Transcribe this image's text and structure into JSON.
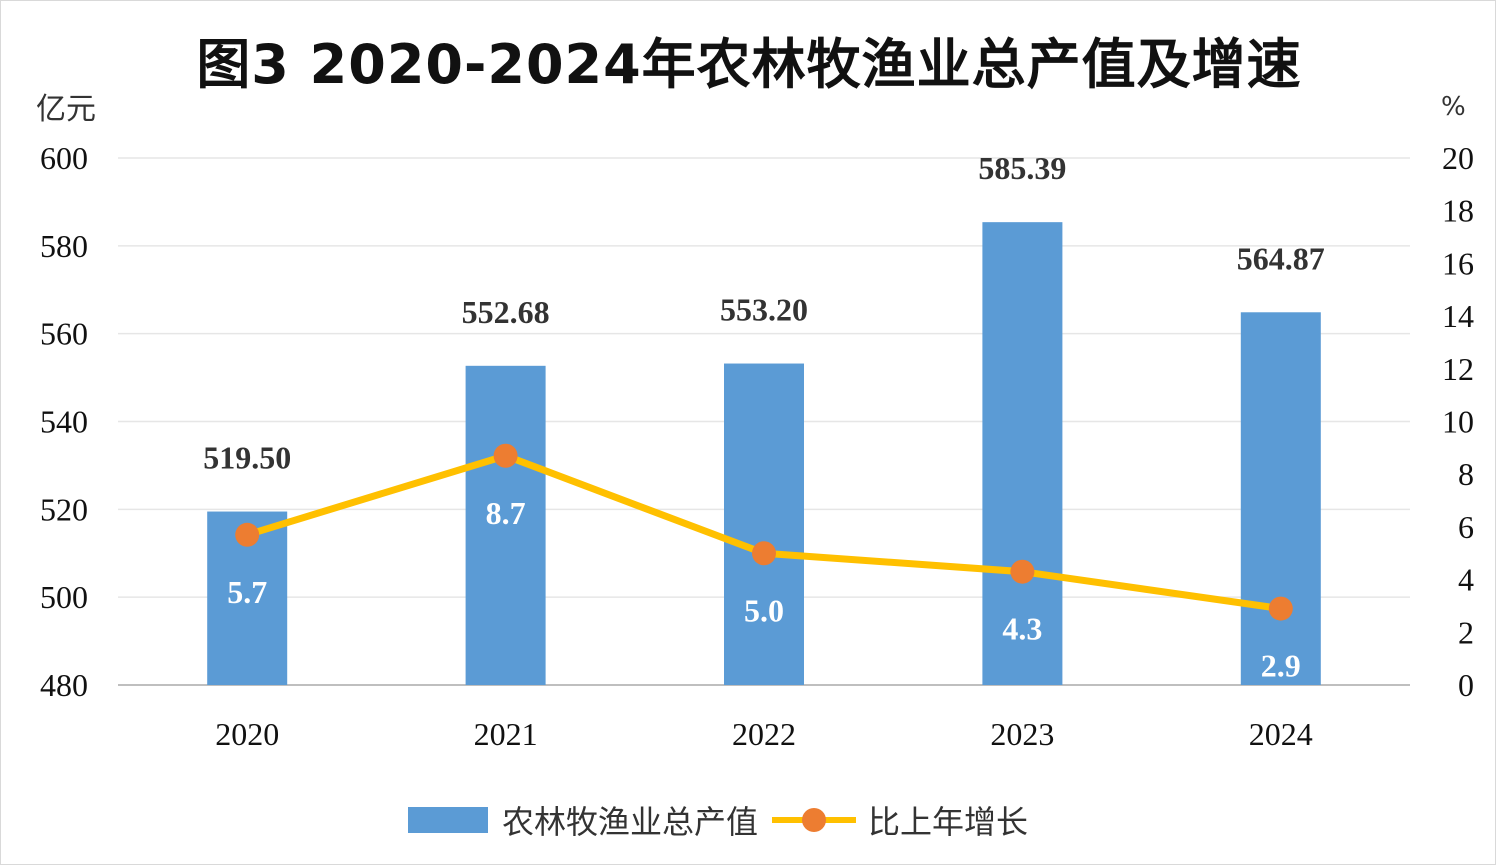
{
  "chart_data": {
    "type": "bar",
    "title": "图3 2020-2024年农林牧渔业总产值及增速",
    "ylabel_left": "亿元",
    "ylabel_right": "%",
    "categories": [
      "2020",
      "2021",
      "2022",
      "2023",
      "2024"
    ],
    "ylim_left": [
      480,
      600
    ],
    "ylim_right": [
      0,
      20
    ],
    "left_ticks": [
      "480",
      "500",
      "520",
      "540",
      "560",
      "580",
      "600"
    ],
    "right_ticks": [
      "0",
      "2",
      "4",
      "6",
      "8",
      "10",
      "12",
      "14",
      "16",
      "18",
      "20"
    ],
    "grid": true,
    "legend_position": "bottom",
    "series": [
      {
        "name": "农林牧渔业总产值",
        "type": "bar",
        "axis": "left",
        "color": "#5b9bd5",
        "values": [
          519.5,
          552.68,
          553.2,
          585.39,
          564.87
        ],
        "labels": [
          "519.50",
          "552.68",
          "553.20",
          "585.39",
          "564.87"
        ]
      },
      {
        "name": "比上年增长",
        "type": "line",
        "axis": "right",
        "color": "#ffc000",
        "marker_color": "#ed7d31",
        "values": [
          5.7,
          8.7,
          5.0,
          4.3,
          2.9
        ],
        "labels": [
          "5.7",
          "8.7",
          "5.0",
          "4.3",
          "2.9"
        ]
      }
    ]
  }
}
